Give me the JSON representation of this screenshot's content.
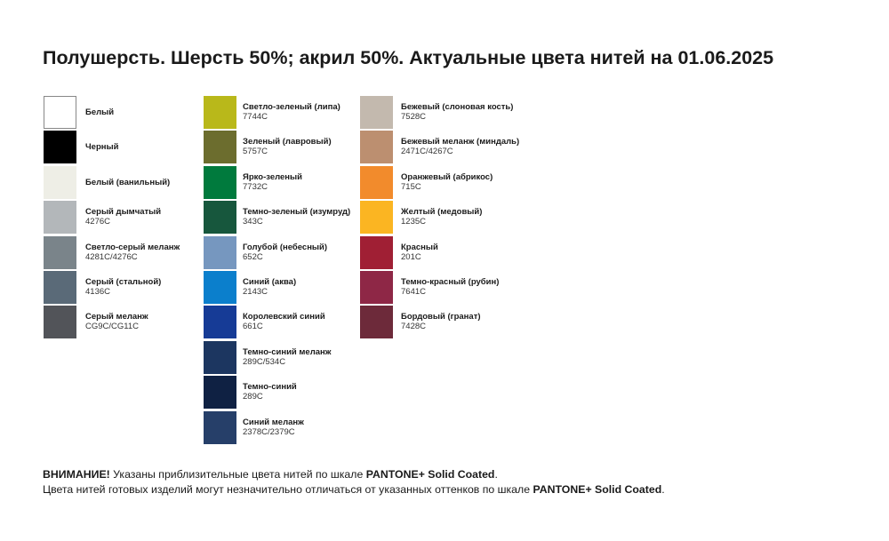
{
  "title": "Полушерсть. Шерсть 50%; акрил 50%. Актуальные цвета нитей на 01.06.2025",
  "columns": [
    [
      {
        "name": "Белый",
        "code": "",
        "color": "#ffffff"
      },
      {
        "name": "Черный",
        "code": "",
        "color": "#000000"
      },
      {
        "name": "Белый (ванильный)",
        "code": "",
        "color": "#eeeee6"
      },
      {
        "name": "Серый дымчатый",
        "code": "4276C",
        "color": "#b3b7ba"
      },
      {
        "name": "Светло-серый меланж",
        "code": "4281C/4276C",
        "color": "#7a848a"
      },
      {
        "name": "Серый (стальной)",
        "code": "4136C",
        "color": "#5a6a78"
      },
      {
        "name": "Серый меланж",
        "code": "CG9C/CG11C",
        "color": "#525459"
      }
    ],
    [
      {
        "name": "Светло-зеленый (липа)",
        "code": "7744C",
        "color": "#b9b81a"
      },
      {
        "name": "Зеленый (лавровый)",
        "code": "5757C",
        "color": "#6c6d2e"
      },
      {
        "name": "Ярко-зеленый",
        "code": "7732C",
        "color": "#007a3d"
      },
      {
        "name": "Темно-зеленый (изумруд)",
        "code": "343C",
        "color": "#17573d"
      },
      {
        "name": "Голубой (небесный)",
        "code": "652C",
        "color": "#7697bf"
      },
      {
        "name": "Синий (аква)",
        "code": "2143C",
        "color": "#0b7fcc"
      },
      {
        "name": "Королевский синий",
        "code": "661C",
        "color": "#163b96"
      },
      {
        "name": "Темно-синий меланж",
        "code": "289C/534C",
        "color": "#1c3660"
      },
      {
        "name": "Темно-синий",
        "code": "289C",
        "color": "#0f2143"
      },
      {
        "name": "Синий меланж",
        "code": "2378C/2379C",
        "color": "#263f69"
      }
    ],
    [
      {
        "name": "Бежевый (слоновая кость)",
        "code": "7528C",
        "color": "#c3b9ae"
      },
      {
        "name": "Бежевый меланж (миндаль)",
        "code": "2471C/4267C",
        "color": "#bc8f70"
      },
      {
        "name": "Оранжевый (абрикос)",
        "code": "715C",
        "color": "#f28b2c"
      },
      {
        "name": "Желтый (медовый)",
        "code": "1235C",
        "color": "#fbb522"
      },
      {
        "name": "Красный",
        "code": "201C",
        "color": "#a01f34"
      },
      {
        "name": "Темно-красный (рубин)",
        "code": "7641C",
        "color": "#8e2746"
      },
      {
        "name": "Бордовый (гранат)",
        "code": "7428C",
        "color": "#6d2a3a"
      }
    ]
  ],
  "footer": {
    "line1_bold": "ВНИМАНИЕ!",
    "line1_text": " Указаны приблизительные цвета нитей по шкале ",
    "line1_scale": "PANTONE+ Solid Coated",
    "line1_end": ".",
    "line2_text": "Цвета нитей готовых изделий могут незначительно отличаться от указанных оттенков по шкале ",
    "line2_scale": "PANTONE+ Solid Coated",
    "line2_end": "."
  }
}
